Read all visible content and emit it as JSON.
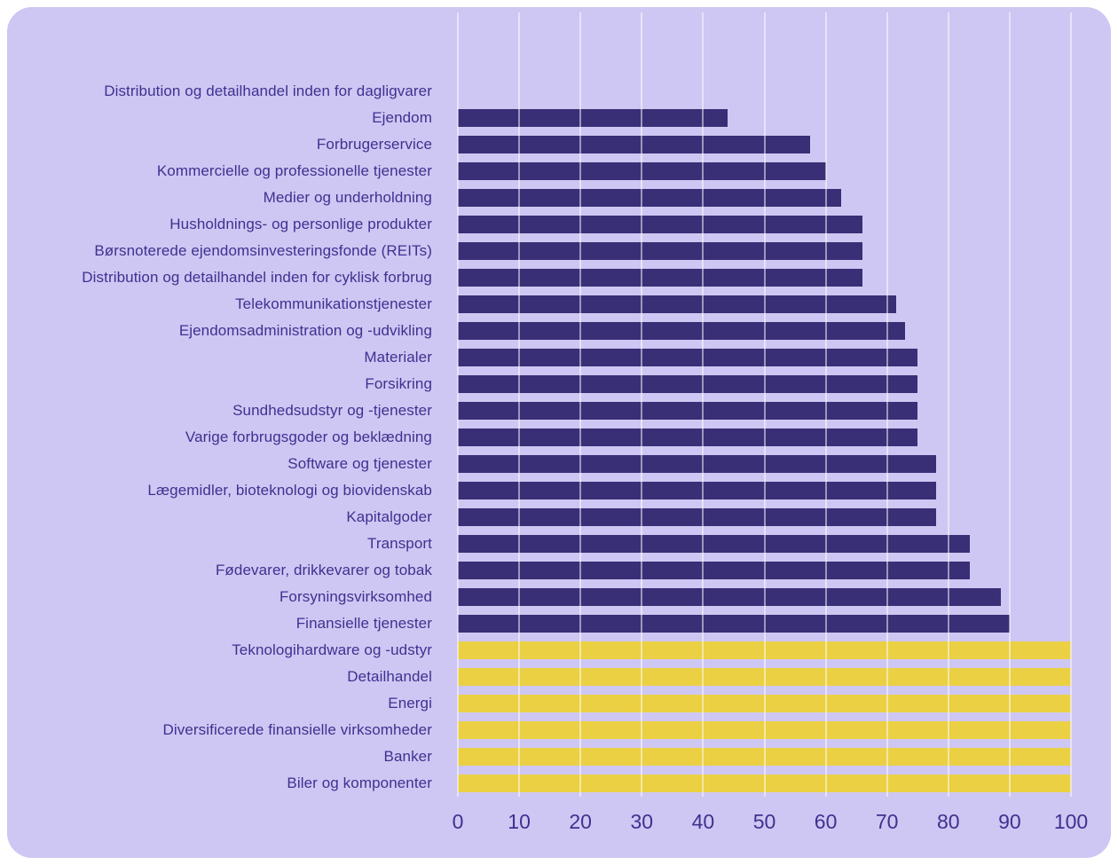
{
  "chart_data": {
    "type": "bar",
    "orientation": "horizontal",
    "title": "",
    "xlabel": "",
    "ylabel": "",
    "xlim": [
      0,
      100
    ],
    "x_ticks": [
      0,
      10,
      20,
      30,
      40,
      50,
      60,
      70,
      80,
      90,
      100
    ],
    "grid": "vertical",
    "legend": "none",
    "categories": [
      "Distribution og detailhandel inden for dagligvarer",
      "Ejendom",
      "Forbrugerservice",
      "Kommercielle og professionelle tjenester",
      "Medier og underholdning",
      "Husholdnings- og personlige produkter",
      "Børsnoterede ejendomsinvesteringsfonde (REITs)",
      "Distribution og detailhandel inden for cyklisk forbrug",
      "Telekommunikationstjenester",
      "Ejendomsadministration og -udvikling",
      "Materialer",
      "Forsikring",
      "Sundhedsudstyr og -tjenester",
      "Varige forbrugsgoder og beklædning",
      "Software og tjenester",
      "Lægemidler, bioteknologi og biovidenskab",
      "Kapitalgoder",
      "Transport",
      "Fødevarer, drikkevarer og tobak",
      "Forsyningsvirksomhed",
      "Finansielle tjenester",
      "Teknologihardware og -udstyr",
      "Detailhandel",
      "Energi",
      "Diversificerede finansielle virksomheder",
      "Banker",
      "Biler og komponenter"
    ],
    "values": [
      0,
      44,
      57.5,
      60,
      62.5,
      66,
      66,
      66,
      71.5,
      73,
      75,
      75,
      75,
      75,
      78,
      78,
      78,
      83.5,
      83.5,
      88.5,
      90,
      100,
      100,
      100,
      100,
      100,
      100
    ],
    "bar_color_keys": [
      "indigo",
      "indigo",
      "indigo",
      "indigo",
      "indigo",
      "indigo",
      "indigo",
      "indigo",
      "indigo",
      "indigo",
      "indigo",
      "indigo",
      "indigo",
      "indigo",
      "indigo",
      "indigo",
      "indigo",
      "indigo",
      "indigo",
      "indigo",
      "indigo",
      "yellow",
      "yellow",
      "yellow",
      "yellow",
      "yellow",
      "yellow"
    ]
  },
  "colors": {
    "panel_background": "#CEC7F3",
    "page_background": "#FFFFFF",
    "indigo": "#392F76",
    "yellow": "#EBD043",
    "gridline": "rgba(255,255,255,0.5)",
    "text": "#3E3190"
  }
}
